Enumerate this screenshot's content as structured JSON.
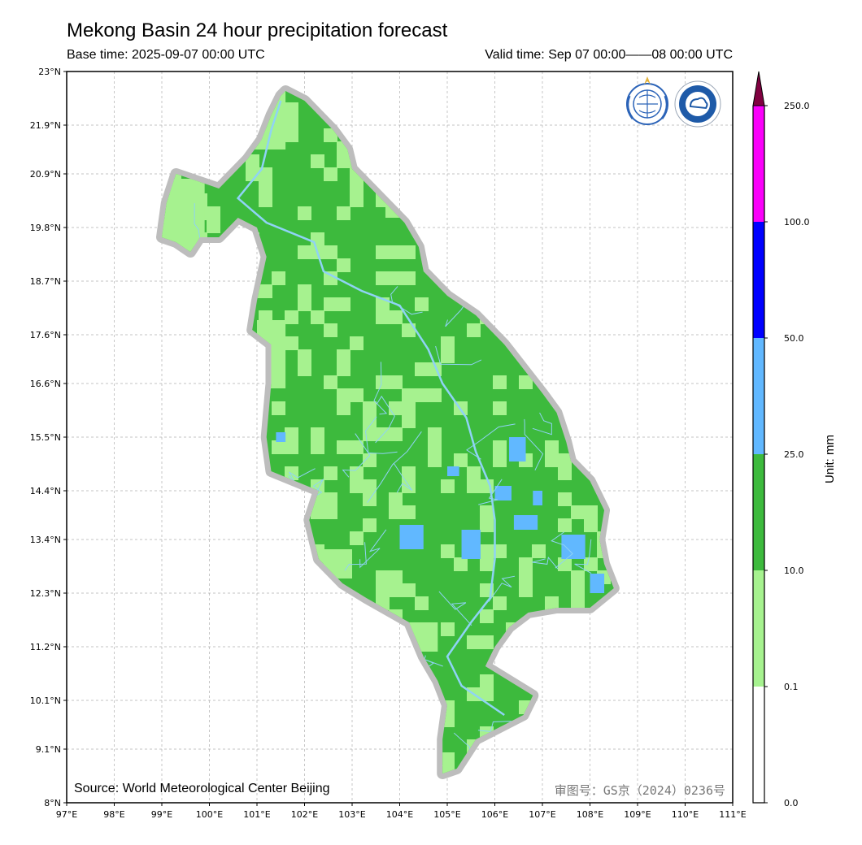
{
  "title": "Mekong Basin 24 hour precipitation forecast",
  "base_time": "Base time: 2025-09-07 00:00 UTC",
  "valid_time": "Valid time: Sep 07 00:00——08 00:00 UTC",
  "source": "Source: World Meteorological Center Beijing",
  "approval_no": "审图号：GS京（2024）0236号",
  "lat_labels": [
    "23°N",
    "21.9°N",
    "20.9°N",
    "19.8°N",
    "18.7°N",
    "17.6°N",
    "16.6°N",
    "15.5°N",
    "14.4°N",
    "13.4°N",
    "12.3°N",
    "11.2°N",
    "10.1°N",
    "9.1°N",
    "8°N"
  ],
  "lat_values": [
    23,
    21.9,
    20.9,
    19.8,
    18.7,
    17.6,
    16.6,
    15.5,
    14.4,
    13.4,
    12.3,
    11.2,
    10.1,
    9.1,
    8
  ],
  "lon_labels": [
    "97°E",
    "98°E",
    "99°E",
    "100°E",
    "101°E",
    "102°E",
    "103°E",
    "104°E",
    "105°E",
    "106°E",
    "107°E",
    "108°E",
    "109°E",
    "110°E",
    "111°E"
  ],
  "lon_values": [
    97,
    98,
    99,
    100,
    101,
    102,
    103,
    104,
    105,
    106,
    107,
    108,
    109,
    110,
    111
  ],
  "extent": {
    "lon_min": 97,
    "lon_max": 111,
    "lat_min": 8,
    "lat_max": 23
  },
  "colorbar": {
    "unit_label": "Unit: mm",
    "tick_labels": [
      "0.0",
      "0.1",
      "10.0",
      "25.0",
      "50.0",
      "100.0",
      "250.0"
    ],
    "bins": [
      {
        "from": "0.0",
        "to": "0.1",
        "color": "#ffffff"
      },
      {
        "from": "0.1",
        "to": "10.0",
        "color": "#a6f28f"
      },
      {
        "from": "10.0",
        "to": "25.0",
        "color": "#3dba3d"
      },
      {
        "from": "25.0",
        "to": "50.0",
        "color": "#61b8ff"
      },
      {
        "from": "50.0",
        "to": "100.0",
        "color": "#0000ff"
      },
      {
        "from": "100.0",
        "to": "250.0",
        "color": "#fa00fa"
      }
    ],
    "extend_color": "#800040"
  },
  "colors": {
    "basin_outline": "#bdbdbd",
    "river": "#8fd3f5",
    "grid": "#b0b0b0",
    "light_rain": "#a6f28f",
    "moderate_rain": "#3dba3d",
    "heavy_rain": "#61b8ff"
  },
  "basin_outline_lonlat": [
    [
      101.6,
      22.6
    ],
    [
      102.0,
      22.4
    ],
    [
      102.6,
      21.8
    ],
    [
      102.9,
      21.4
    ],
    [
      103.0,
      21.0
    ],
    [
      103.6,
      20.4
    ],
    [
      104.1,
      19.9
    ],
    [
      104.4,
      19.4
    ],
    [
      104.5,
      18.9
    ],
    [
      105.0,
      18.4
    ],
    [
      105.6,
      18.0
    ],
    [
      106.2,
      17.4
    ],
    [
      106.6,
      16.9
    ],
    [
      107.0,
      16.4
    ],
    [
      107.3,
      16.0
    ],
    [
      107.5,
      15.4
    ],
    [
      107.6,
      15.0
    ],
    [
      108.0,
      14.6
    ],
    [
      108.3,
      14.0
    ],
    [
      108.2,
      13.4
    ],
    [
      108.3,
      12.9
    ],
    [
      108.5,
      12.4
    ],
    [
      108.0,
      12.0
    ],
    [
      107.3,
      12.0
    ],
    [
      106.7,
      11.9
    ],
    [
      106.3,
      11.6
    ],
    [
      106.0,
      11.2
    ],
    [
      105.8,
      10.8
    ],
    [
      106.8,
      10.2
    ],
    [
      106.6,
      9.8
    ],
    [
      105.6,
      9.3
    ],
    [
      105.2,
      8.7
    ],
    [
      104.9,
      8.6
    ],
    [
      104.9,
      9.3
    ],
    [
      105.0,
      10.0
    ],
    [
      104.8,
      10.5
    ],
    [
      104.5,
      11.0
    ],
    [
      104.2,
      11.7
    ],
    [
      103.3,
      12.2
    ],
    [
      102.8,
      12.5
    ],
    [
      102.3,
      13.0
    ],
    [
      102.1,
      13.8
    ],
    [
      102.3,
      14.4
    ],
    [
      101.8,
      14.6
    ],
    [
      101.3,
      14.8
    ],
    [
      101.2,
      15.5
    ],
    [
      101.3,
      16.6
    ],
    [
      101.3,
      17.4
    ],
    [
      100.9,
      17.7
    ],
    [
      101.0,
      18.3
    ],
    [
      101.2,
      19.2
    ],
    [
      101.0,
      19.8
    ],
    [
      100.6,
      20.0
    ],
    [
      100.2,
      19.6
    ],
    [
      99.8,
      19.6
    ],
    [
      99.6,
      19.3
    ],
    [
      99.3,
      19.5
    ],
    [
      99.0,
      19.6
    ],
    [
      99.1,
      20.3
    ],
    [
      99.3,
      20.9
    ],
    [
      99.6,
      20.8
    ],
    [
      100.2,
      20.6
    ],
    [
      100.5,
      20.9
    ],
    [
      100.8,
      21.2
    ],
    [
      101.1,
      21.6
    ],
    [
      101.3,
      22.1
    ],
    [
      101.5,
      22.5
    ],
    [
      101.6,
      22.6
    ]
  ],
  "heavy_rain_patches_lonlat": [
    [
      106.3,
      15.5,
      0.35,
      0.5
    ],
    [
      106.0,
      14.5,
      0.35,
      0.3
    ],
    [
      104.0,
      13.7,
      0.5,
      0.5
    ],
    [
      105.3,
      13.6,
      0.4,
      0.6
    ],
    [
      106.4,
      13.9,
      0.5,
      0.3
    ],
    [
      107.4,
      13.5,
      0.5,
      0.5
    ],
    [
      108.0,
      12.7,
      0.3,
      0.4
    ],
    [
      101.4,
      15.6,
      0.2,
      0.2
    ],
    [
      105.0,
      14.9,
      0.25,
      0.2
    ],
    [
      106.8,
      14.4,
      0.2,
      0.3
    ]
  ]
}
